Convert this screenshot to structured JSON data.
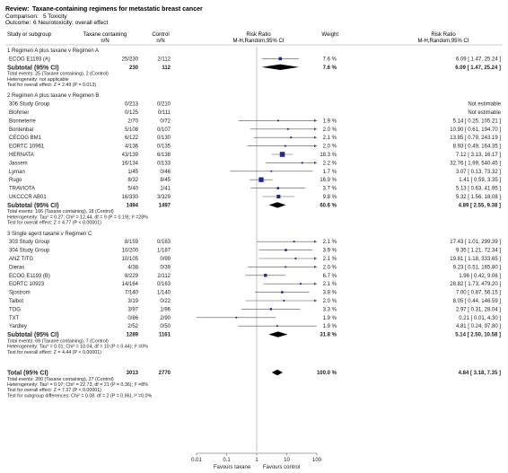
{
  "header": {
    "review_label": "Review:",
    "review": "Taxane-containing regimens for metastatic breast cancer",
    "comparison_label": "Comparison:",
    "comparison": "5 Toxicity",
    "outcome_label": "Outcome:",
    "outcome": "6 Neurotoxicity; overall effect"
  },
  "columns": {
    "study": "Study or subgroup",
    "exp_1": "Taxane containing",
    "exp_2": "n/N",
    "ctl_1": "Control",
    "ctl_2": "n/N",
    "rr_1": "Risk Ratio",
    "rr_2": "M-H,Random,95% CI",
    "weight": "Weight",
    "rrci_1": "Risk Ratio",
    "rrci_2": "M-H,Random,95% CI"
  },
  "axis": {
    "ticks": [
      "0.01",
      "0.1",
      "1",
      "10",
      "100"
    ],
    "favours_left": "Favours taxane",
    "favours_right": "Favours control"
  },
  "chart_data": {
    "type": "forest",
    "scale": "log",
    "xlim": [
      0.01,
      100
    ],
    "groups": [
      {
        "title": "1 Regimen A plus taxane v Regimen A",
        "studies": [
          {
            "name": "ECOG E1193 (A)",
            "exp": "25/230",
            "ctl": "2/112",
            "weight": "7.6 %",
            "ci_text": "6.09 [ 1.47, 25.24 ]",
            "rr": 6.09,
            "lo": 1.47,
            "hi": 25.24
          }
        ],
        "subtotal": {
          "label": "Subtotal (95% CI)",
          "exp": "230",
          "ctl": "112",
          "weight": "7.6 %",
          "ci_text": "6.09 [ 1.47, 25.24 ]",
          "rr": 6.09,
          "lo": 1.47,
          "hi": 25.24
        },
        "notes": [
          "Total events: 25 (Taxane containing), 2 (Control)",
          "Heterogeneity: not applicable",
          "Test for overall effect: Z = 2.49 (P = 0.013)"
        ]
      },
      {
        "title": "2 Regimen A plus taxane v Regimen B",
        "studies": [
          {
            "name": "306 Study Group",
            "exp": "0/213",
            "ctl": "0/210",
            "weight": "",
            "ci_text": "Not estimable"
          },
          {
            "name": "Blohmer",
            "exp": "0/125",
            "ctl": "0/111",
            "weight": "",
            "ci_text": "Not estimable"
          },
          {
            "name": "Bonneterre",
            "exp": "2/70",
            "ctl": "0/72",
            "weight": "1.9 %",
            "ci_text": "5.14 [ 0.25, 105.21 ]",
            "rr": 5.14,
            "lo": 0.25,
            "hi": 105.21
          },
          {
            "name": "Bontenbal",
            "exp": "5/108",
            "ctl": "0/107",
            "weight": "2.0 %",
            "ci_text": "10.90 [ 0.61, 194.70 ]",
            "rr": 10.9,
            "lo": 0.61,
            "hi": 194.7
          },
          {
            "name": "CECOG BM1",
            "exp": "6/122",
            "ctl": "0/130",
            "weight": "2.1 %",
            "ci_text": "13.85 [ 0.79, 243.19 ]",
            "rr": 13.85,
            "lo": 0.79,
            "hi": 243.19
          },
          {
            "name": "EORTC 10961",
            "exp": "4/136",
            "ctl": "0/135",
            "weight": "2.0 %",
            "ci_text": "8.93 [ 0.49, 164.35 ]",
            "rr": 8.93,
            "lo": 0.49,
            "hi": 164.35
          },
          {
            "name": "HERNATA",
            "exp": "43/139",
            "ctl": "6/138",
            "weight": "18.3 %",
            "ci_text": "7.12 [ 3.13, 16.17 ]",
            "rr": 7.12,
            "lo": 3.13,
            "hi": 16.17
          },
          {
            "name": "Jassem",
            "exp": "16/134",
            "ctl": "0/133",
            "weight": "2.2 %",
            "ci_text": "32.76 [ 1.99, 540.45 ]",
            "rr": 32.76,
            "lo": 1.99,
            "hi": 540.45
          },
          {
            "name": "Lyman",
            "exp": "1/45",
            "ctl": "0/46",
            "weight": "1.7 %",
            "ci_text": "3.07 [ 0.13, 73.32 ]",
            "rr": 3.07,
            "lo": 0.13,
            "hi": 73.32
          },
          {
            "name": "Rugo",
            "exp": "8/32",
            "ctl": "8/45",
            "weight": "16.9 %",
            "ci_text": "1.41 [ 0.59, 3.35 ]",
            "rr": 1.41,
            "lo": 0.59,
            "hi": 3.35
          },
          {
            "name": "TRAVIOTA",
            "exp": "5/40",
            "ctl": "1/41",
            "weight": "3.7 %",
            "ci_text": "5.13 [ 0.63, 41.95 ]",
            "rr": 5.13,
            "lo": 0.63,
            "hi": 41.95
          },
          {
            "name": "UKCCCR AB01",
            "exp": "16/330",
            "ctl": "3/329",
            "weight": "9.8 %",
            "ci_text": "5.32 [ 1.56, 18.08 ]",
            "rr": 5.32,
            "lo": 1.56,
            "hi": 18.08
          }
        ],
        "subtotal": {
          "label": "Subtotal (95% CI)",
          "exp": "1494",
          "ctl": "1497",
          "weight": "60.6 %",
          "ci_text": "4.89 [ 2.55, 9.38 ]",
          "rr": 4.89,
          "lo": 2.55,
          "hi": 9.38
        },
        "notes": [
          "Total events: 106 (Taxane containing), 18 (Control)",
          "Heterogeneity: Tau² = 0.27; Chi² = 12.44, df = 9 (P = 0.19); I² =28%",
          "Test for overall effect: Z = 4.77 (P < 0.00001)"
        ]
      },
      {
        "title": "3 Single agent taxane v Regimen C",
        "studies": [
          {
            "name": "303 Study Group",
            "exp": "8/159",
            "ctl": "0/163",
            "weight": "2.1 %",
            "ci_text": "17.43 [ 1.01, 299.39 ]",
            "rr": 17.43,
            "lo": 1.01,
            "hi": 299.39
          },
          {
            "name": "304 Study Group",
            "exp": "10/200",
            "ctl": "1/187",
            "weight": "3.9 %",
            "ci_text": "9.35 [ 1.21, 72.34 ]",
            "rr": 9.35,
            "lo": 1.21,
            "hi": 72.34
          },
          {
            "name": "ANZ TITG",
            "exp": "10/105",
            "ctl": "0/99",
            "weight": "2.1 %",
            "ci_text": "19.81 [ 1.18, 333.65 ]",
            "rr": 19.81,
            "lo": 1.18,
            "hi": 333.65
          },
          {
            "name": "Dieras",
            "exp": "4/38",
            "ctl": "0/39",
            "weight": "2.0 %",
            "ci_text": "9.23 [ 0.51, 165.80 ]",
            "rr": 9.23,
            "lo": 0.51,
            "hi": 165.8
          },
          {
            "name": "ECOG E1193 (B)",
            "exp": "8/229",
            "ctl": "2/112",
            "weight": "6.7 %",
            "ci_text": "1.96 [ 0.42, 9.06 ]",
            "rr": 1.96,
            "lo": 0.42,
            "hi": 9.06
          },
          {
            "name": "EORTC 10923",
            "exp": "14/164",
            "ctl": "0/163",
            "weight": "2.1 %",
            "ci_text": "28.82 [ 1.73, 479.20 ]",
            "rr": 28.82,
            "lo": 1.73,
            "hi": 479.2
          },
          {
            "name": "Sjostrom",
            "exp": "7/140",
            "ctl": "1/140",
            "weight": "3.8 %",
            "ci_text": "7.00 [ 0.87, 56.15 ]",
            "rr": 7.0,
            "lo": 0.87,
            "hi": 56.15
          },
          {
            "name": "Talbot",
            "exp": "3/19",
            "ctl": "0/22",
            "weight": "2.0 %",
            "ci_text": "8.05 [ 0.44, 146.59 ]",
            "rr": 8.05,
            "lo": 0.44,
            "hi": 146.59
          },
          {
            "name": "TOG",
            "exp": "3/97",
            "ctl": "1/96",
            "weight": "3.3 %",
            "ci_text": "2.97 [ 0.31, 28.04 ]",
            "rr": 2.97,
            "lo": 0.31,
            "hi": 28.04
          },
          {
            "name": "TXT",
            "exp": "0/86",
            "ctl": "2/90",
            "weight": "1.9 %",
            "ci_text": "0.21 [ 0.01, 4.30 ]",
            "rr": 0.21,
            "lo": 0.01,
            "hi": 4.3
          },
          {
            "name": "Yardley",
            "exp": "2/52",
            "ctl": "0/50",
            "weight": "1.9 %",
            "ci_text": "4.81 [ 0.24, 97.80 ]",
            "rr": 4.81,
            "lo": 0.24,
            "hi": 97.8
          }
        ],
        "subtotal": {
          "label": "Subtotal (95% CI)",
          "exp": "1289",
          "ctl": "1161",
          "weight": "31.8 %",
          "ci_text": "5.14 [ 2.50, 10.58 ]",
          "rr": 5.14,
          "lo": 2.5,
          "hi": 10.58
        },
        "notes": [
          "Total events: 69 (Taxane containing), 7 (Control)",
          "Heterogeneity: Tau² = 0.01; Chi² = 10.04, df = 10 (P = 0.44); I² =0%",
          "Test for overall effect: Z = 4.44 (P < 0.00001)"
        ]
      }
    ],
    "total": {
      "label": "Total (95% CI)",
      "exp": "3013",
      "ctl": "2770",
      "weight": "100.0 %",
      "ci_text": "4.84 [ 3.18, 7.35 ]",
      "rr": 4.84,
      "lo": 3.18,
      "hi": 7.35
    },
    "total_notes": [
      "Total events: 200 (Taxane containing), 27 (Control)",
      "Heterogeneity: Tau² = 0.07; Chi² = 22.73, df = 21 (P = 0.36); I² =8%",
      "Test for overall effect: Z = 7.37 (P < 0.00001)",
      "Test for subgroup differences: Chi² = 0.08, df = 2 (P = 0.96), I² =0.0%"
    ],
    "colors": {
      "marker": "#1f2b8c",
      "line": "#555555",
      "text": "#222222"
    }
  }
}
